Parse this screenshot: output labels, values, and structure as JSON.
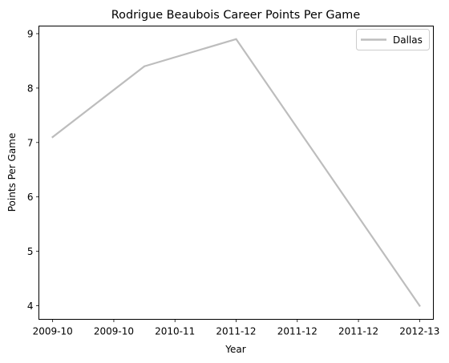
{
  "chart_data": {
    "type": "line",
    "title": "Rodrigue Beaubois Career Points Per Game",
    "xlabel": "Year",
    "ylabel": "Points Per Game",
    "x_tick_labels": [
      "2009-10",
      "2009-10",
      "2010-11",
      "2011-12",
      "2011-12",
      "2011-12",
      "2012-13"
    ],
    "y_ticks": [
      4,
      5,
      6,
      7,
      8,
      9
    ],
    "ylim": [
      3.75,
      9.14
    ],
    "xlim": [
      -0.15,
      4.15
    ],
    "grid": false,
    "legend": {
      "placement": "top-right"
    },
    "series": [
      {
        "name": "Dallas",
        "color": "#bdbdbd",
        "points": [
          {
            "x": 0,
            "y": 7.1,
            "label": "2009-10"
          },
          {
            "x": 1,
            "y": 8.4,
            "label": "2010-11"
          },
          {
            "x": 2,
            "y": 8.9,
            "label": "2011-12"
          },
          {
            "x": 4,
            "y": 4.0,
            "label": "2012-13"
          }
        ]
      }
    ]
  }
}
